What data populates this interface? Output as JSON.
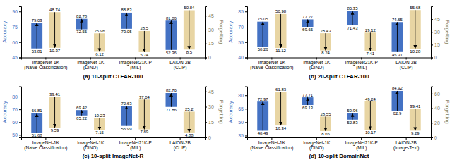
{
  "chart_data": [
    {
      "type": "bar",
      "title": "(a) 10-split CTFAR-100",
      "ylabel": "Accuracy",
      "y2label": "Forgetting",
      "categories": [
        "ImageNet-1K\n(Naive Classification)",
        "ImageNet-1K\n(DINO)",
        "ImageNet21K-P\n(MIL)",
        "LAION-2B\n(CLIP)"
      ],
      "ylim": [
        45,
        95
      ],
      "yticks": [
        45,
        60,
        75,
        90
      ],
      "y2lim": [
        0,
        55
      ],
      "y2ticks": [
        0,
        15,
        30,
        45
      ],
      "grid": false,
      "data_labels": true,
      "series": [
        {
          "color": "#4472C4",
          "start": [
            53.81,
            72.55,
            73.05,
            52.36
          ],
          "end": [
            79.03,
            82.78,
            88.83,
            81.06
          ]
        },
        {
          "axis": "y2",
          "color": "#E8D5A3",
          "start": [
            48.74,
            25.96,
            28.5,
            50.84
          ],
          "end": [
            10.37,
            6.12,
            5.74,
            8.5
          ]
        }
      ]
    },
    {
      "type": "bar",
      "title": "(b) 20-split CTFAR-100",
      "ylabel": "Accuracy",
      "y2label": "Forgetting",
      "categories": [
        "ImageNet-1K\n(Naive Classification)",
        "ImageNet-1K\n(DINO)",
        "ImageNet21K-P\n(MIL)",
        "LAION-2B\n(CLIP)"
      ],
      "ylim": [
        40,
        90
      ],
      "yticks": [
        40,
        55,
        70,
        85
      ],
      "y2lim": [
        0,
        60
      ],
      "y2ticks": [
        0,
        15,
        30,
        45
      ],
      "grid": false,
      "data_labels": true,
      "series": [
        {
          "color": "#4472C4",
          "start": [
            50.26,
            69.65,
            71.43,
            45.31
          ],
          "end": [
            75.05,
            77.27,
            85.35,
            74.65
          ]
        },
        {
          "axis": "y2",
          "color": "#E8D5A3",
          "start": [
            50.98,
            28.43,
            29.12,
            55.68
          ],
          "end": [
            11.12,
            8.24,
            7.41,
            10.28
          ]
        }
      ]
    },
    {
      "type": "bar",
      "title": "(c) 10-split ImageNet-R",
      "ylabel": "Accuracy",
      "y2label": "Forgetting",
      "categories": [
        "ImageNet-1K\n(Naive Classification)",
        "ImageNet-1K\n(DINO)",
        "ImageNet21K-P\n(MIL)",
        "LAION-2B\n(CLIP)"
      ],
      "ylim": [
        48,
        88
      ],
      "yticks": [
        50,
        60,
        70,
        80
      ],
      "y2lim": [
        0,
        50
      ],
      "y2ticks": [
        0,
        15,
        30,
        45
      ],
      "grid": false,
      "data_labels": true,
      "series": [
        {
          "color": "#4472C4",
          "start": [
            51.68,
            65.22,
            56.99,
            71.86
          ],
          "end": [
            66.81,
            69.42,
            72.63,
            82.76
          ]
        },
        {
          "axis": "y2",
          "color": "#E8D5A3",
          "start": [
            39.41,
            19.23,
            37.04,
            25.2
          ],
          "end": [
            9.59,
            7.15,
            7.89,
            4.88
          ]
        }
      ]
    },
    {
      "type": "bar",
      "title": "(d) 10-split DomainNet",
      "ylabel": "Accuracy",
      "y2label": "Forgetting",
      "categories": [
        "ImageNet-1K\n(Naive Classification)",
        "ImageNet-1K\n(DINO)",
        "ImageNet21K-P\n(MIL)",
        "LAION-2B\n(Image-Text)"
      ],
      "ylim": [
        33,
        90
      ],
      "yticks": [
        35,
        50,
        65,
        80
      ],
      "y2lim": [
        0,
        70
      ],
      "y2ticks": [
        0,
        20,
        40,
        60
      ],
      "grid": false,
      "data_labels": true,
      "series": [
        {
          "color": "#4472C4",
          "start": [
            40.49,
            69.13,
            52.83,
            62.9
          ],
          "end": [
            72.97,
            77.71,
            59.96,
            84.92
          ]
        },
        {
          "axis": "y2",
          "color": "#E8D5A3",
          "start": [
            61.83,
            28.55,
            49.24,
            39.41
          ],
          "end": [
            16.34,
            8.65,
            10.17,
            9.29
          ]
        }
      ]
    }
  ]
}
